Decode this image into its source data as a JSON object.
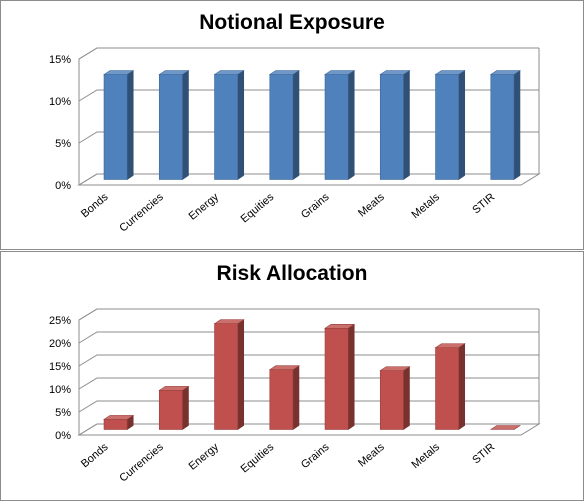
{
  "chart_data": [
    {
      "type": "bar",
      "title": "Notional Exposure",
      "categories": [
        "Bonds",
        "Currencies",
        "Energy",
        "Equities",
        "Grains",
        "Meats",
        "Metals",
        "STIR"
      ],
      "values": [
        12.5,
        12.5,
        12.5,
        12.5,
        12.5,
        12.5,
        12.5,
        12.5
      ],
      "ylim": [
        0,
        15
      ],
      "yticks": [
        "0%",
        "5%",
        "10%",
        "15%"
      ],
      "grid": true,
      "color": "#4f81bd"
    },
    {
      "type": "bar",
      "title": "Risk Allocation",
      "categories": [
        "Bonds",
        "Currencies",
        "Energy",
        "Equities",
        "Grains",
        "Meats",
        "Metals",
        "STIR"
      ],
      "values": [
        2.2,
        8.5,
        23,
        13,
        22,
        12.8,
        17.8,
        0
      ],
      "ylim": [
        0,
        25
      ],
      "yticks": [
        "0%",
        "5%",
        "10%",
        "15%",
        "20%",
        "25%"
      ],
      "grid": true,
      "color": "#c0504d"
    }
  ]
}
